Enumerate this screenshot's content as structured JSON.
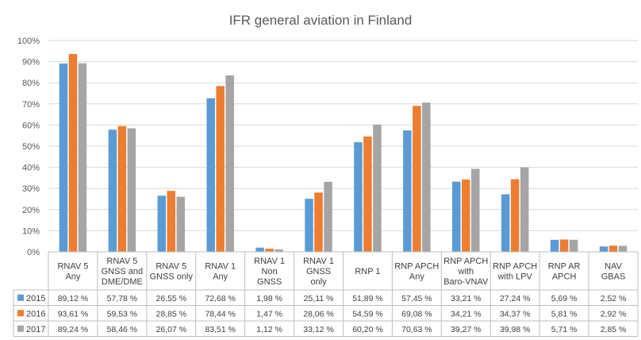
{
  "chart_data": {
    "type": "bar",
    "title": "IFR general aviation in Finland",
    "ylim": [
      0,
      100
    ],
    "yticks": [
      "0%",
      "10%",
      "20%",
      "30%",
      "40%",
      "50%",
      "60%",
      "70%",
      "80%",
      "90%",
      "100%"
    ],
    "categories": [
      [
        "RNAV 5",
        "Any"
      ],
      [
        "RNAV 5",
        "GNSS and",
        "DME/DME"
      ],
      [
        "RNAV 5",
        "GNSS only"
      ],
      [
        "RNAV 1",
        "Any"
      ],
      [
        "RNAV 1",
        "Non",
        "GNSS"
      ],
      [
        "RNAV 1",
        "GNSS",
        "only"
      ],
      [
        "RNP 1"
      ],
      [
        "RNP APCH",
        "Any"
      ],
      [
        "RNP APCH",
        "with",
        "Baro-VNAV"
      ],
      [
        "RNP APCH",
        "with LPV"
      ],
      [
        "RNP AR",
        "APCH"
      ],
      [
        "NAV",
        "GBAS"
      ]
    ],
    "series": [
      {
        "name": "2015",
        "color": "#5B9BD5",
        "values": [
          89.12,
          57.78,
          26.55,
          72.68,
          1.98,
          25.11,
          51.89,
          57.45,
          33.21,
          27.24,
          5.69,
          2.52
        ],
        "labels": [
          "89,12 %",
          "57,78 %",
          "26,55 %",
          "72,68 %",
          "1,98 %",
          "25,11 %",
          "51,89 %",
          "57,45 %",
          "33,21 %",
          "27,24 %",
          "5,69 %",
          "2,52 %"
        ]
      },
      {
        "name": "2016",
        "color": "#ED7D31",
        "values": [
          93.61,
          59.53,
          28.85,
          78.44,
          1.47,
          28.06,
          54.59,
          69.08,
          34.21,
          34.37,
          5.81,
          2.92
        ],
        "labels": [
          "93,61 %",
          "59,53 %",
          "28,85 %",
          "78,44 %",
          "1,47 %",
          "28,06 %",
          "54,59 %",
          "69,08 %",
          "34,21 %",
          "34,37 %",
          "5,81 %",
          "2,92 %"
        ]
      },
      {
        "name": "2017",
        "color": "#A5A5A5",
        "values": [
          89.24,
          58.46,
          26.07,
          83.51,
          1.12,
          33.12,
          60.2,
          70.63,
          39.27,
          39.98,
          5.71,
          2.85
        ],
        "labels": [
          "89,24 %",
          "58,46 %",
          "26,07 %",
          "83,51 %",
          "1,12 %",
          "33,12 %",
          "60,20 %",
          "70,63 %",
          "39,27 %",
          "39,98 %",
          "5,71 %",
          "2,85 %"
        ]
      }
    ],
    "legend": "data-table",
    "grid": true
  }
}
